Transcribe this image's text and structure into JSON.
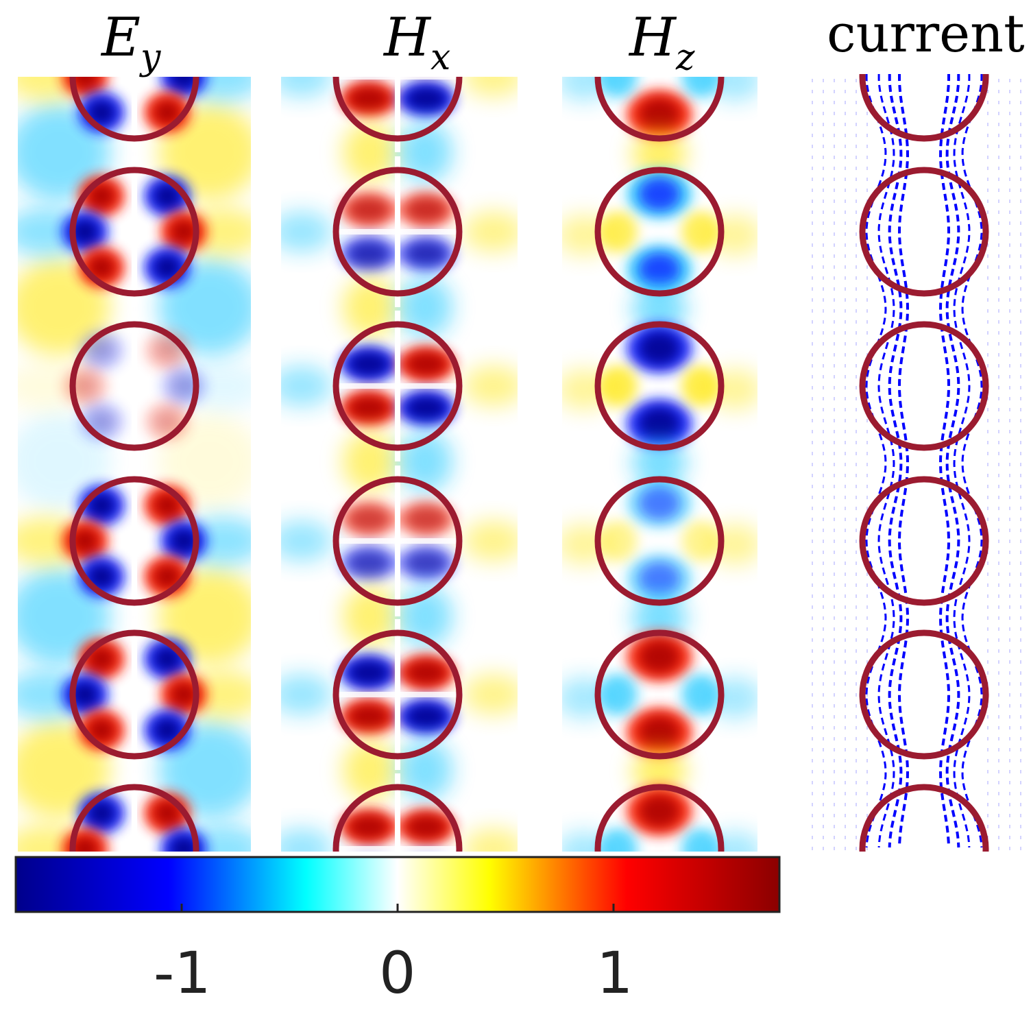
{
  "panels": [
    {
      "title": "E",
      "title_sub": "y"
    },
    {
      "title": "H",
      "title_sub": "x"
    },
    {
      "title": "H",
      "title_sub": "z"
    },
    {
      "title": "current",
      "title_sub": ""
    }
  ],
  "colorbar": {
    "ticks": [
      "-1",
      "0",
      "1"
    ],
    "colormap": [
      "#00008b",
      "#0000ff",
      "#00ffff",
      "#ffffff",
      "#ffff00",
      "#ff0000",
      "#8b0000"
    ]
  },
  "colors": {
    "ring": "#9b1b30",
    "current_arrows": "#0000ff"
  }
}
